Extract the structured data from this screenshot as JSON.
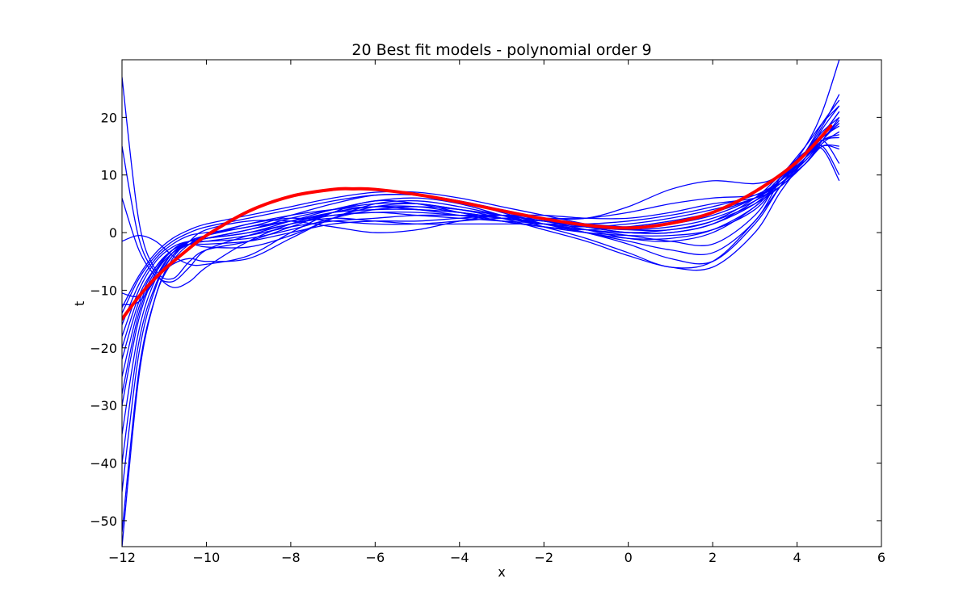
{
  "chart_data": {
    "type": "line",
    "title": "20 Best fit models - polynomial order 9",
    "xlabel": "x",
    "ylabel": "t",
    "xlim": [
      -12,
      6
    ],
    "ylim": [
      -54.5,
      30
    ],
    "xticks": [
      -12,
      -10,
      -8,
      -6,
      -4,
      -2,
      0,
      2,
      4,
      6
    ],
    "yticks": [
      -50,
      -40,
      -30,
      -20,
      -10,
      0,
      10,
      20
    ],
    "xtick_labels": [
      "−12",
      "−10",
      "−8",
      "−6",
      "−4",
      "−2",
      "0",
      "2",
      "4",
      "6"
    ],
    "ytick_labels": [
      "−50",
      "−40",
      "−30",
      "−20",
      "−10",
      "0",
      "10",
      "20"
    ],
    "grid": false,
    "colors": {
      "models": "#0000ff",
      "truth": "#ff0000"
    },
    "true_function": {
      "x": [
        -12,
        -11.5,
        -11,
        -10.5,
        -10,
        -9,
        -8,
        -7,
        -6.5,
        -6,
        -5,
        -4,
        -3,
        -2,
        -1,
        0,
        1,
        2,
        3,
        4,
        4.8
      ],
      "y": [
        -15,
        -10.2,
        -6.4,
        -3.3,
        -0.5,
        3.7,
        6.3,
        7.5,
        7.6,
        7.5,
        6.6,
        5.3,
        3.8,
        2.4,
        1.3,
        0.8,
        1.6,
        3.5,
        7.1,
        12.3,
        18.5
      ]
    },
    "models": [
      {
        "x": [
          -12,
          -11.6,
          -11.2,
          -10.8,
          -10.4,
          -10,
          -9,
          -8,
          -7,
          -6,
          -5,
          -4,
          -3,
          -2,
          -1,
          0,
          1,
          2,
          3,
          3.6,
          4.2,
          4.6,
          5
        ],
        "y": [
          27,
          2,
          -6.5,
          -8,
          -5,
          -3,
          -1.5,
          1,
          3.5,
          4.5,
          4,
          3.5,
          2.5,
          1.5,
          1,
          1.5,
          2.5,
          4,
          6,
          9,
          13,
          16,
          16.5
        ]
      },
      {
        "x": [
          -12,
          -11.6,
          -11.2,
          -10.8,
          -10.4,
          -10,
          -9,
          -8,
          -7,
          -6,
          -5,
          -4,
          -3,
          -2,
          -1,
          0,
          1,
          2,
          3,
          3.6,
          4.2,
          4.6,
          5
        ],
        "y": [
          15,
          -1,
          -7,
          -9.5,
          -8.5,
          -6,
          -1.5,
          1.5,
          3.5,
          4.5,
          4.5,
          3.5,
          2.5,
          2,
          1.5,
          1,
          1.5,
          3,
          6,
          9,
          12.5,
          16,
          17
        ]
      },
      {
        "x": [
          -12,
          -11.6,
          -11.2,
          -10.8,
          -10.4,
          -10,
          -9,
          -8,
          -7,
          -6,
          -5,
          -4,
          -3,
          -2,
          -1,
          0,
          1,
          2,
          3,
          3.6,
          4.2,
          4.6,
          5
        ],
        "y": [
          6,
          -3,
          -7.5,
          -8.5,
          -6,
          -3,
          -0.5,
          1.5,
          2.5,
          2,
          1.5,
          1.5,
          1.5,
          1.5,
          1.5,
          2,
          3,
          4.5,
          6.5,
          9,
          13,
          16.5,
          18.5
        ]
      },
      {
        "x": [
          -12,
          -11.6,
          -11.2,
          -10.8,
          -10.4,
          -10,
          -9,
          -8,
          -7,
          -6,
          -5,
          -4,
          -3,
          -2,
          -1,
          0,
          1,
          2,
          3,
          3.6,
          4.2,
          4.6,
          5
        ],
        "y": [
          -1.5,
          -0.5,
          -1.5,
          -4,
          -5.5,
          -5.5,
          -4,
          0,
          3.5,
          5.5,
          5,
          3.5,
          2,
          1,
          0.5,
          1,
          2,
          3.5,
          6,
          8.5,
          12,
          16,
          19
        ]
      },
      {
        "x": [
          -12,
          -11.6,
          -11.2,
          -10.8,
          -10.4,
          -10,
          -9,
          -8,
          -7,
          -6,
          -5,
          -4,
          -3,
          -2,
          -1,
          0,
          1,
          2,
          3,
          3.6,
          4.2,
          4.6,
          5
        ],
        "y": [
          -10.5,
          -11,
          -8,
          -5.5,
          -4.5,
          -5,
          -4.5,
          -1,
          2.5,
          4.5,
          5,
          4,
          3,
          2,
          1,
          0.5,
          1,
          2.5,
          5.5,
          8.5,
          12.5,
          16,
          19.5
        ]
      },
      {
        "x": [
          -12,
          -11.6,
          -11.2,
          -10.8,
          -10.4,
          -10,
          -9,
          -8,
          -7,
          -6,
          -5,
          -4,
          -3,
          -2,
          -1,
          0,
          1,
          2,
          3,
          3.6,
          4.2,
          4.6,
          5
        ],
        "y": [
          -12.5,
          -12,
          -8,
          -3.5,
          -2,
          -2.5,
          -2.5,
          -0.5,
          2.5,
          5,
          5.5,
          4.5,
          3,
          1.5,
          0.5,
          0,
          0.5,
          2,
          5,
          8,
          12,
          15.5,
          17.5
        ]
      },
      {
        "x": [
          -12,
          -11.6,
          -11.2,
          -10.8,
          -10.4,
          -10,
          -9,
          -8,
          -7,
          -6,
          -5,
          -4,
          -3,
          -2,
          -1,
          0,
          1,
          2,
          3,
          3.6,
          4.2,
          4.6,
          5
        ],
        "y": [
          -22,
          -12,
          -6,
          -3,
          -1.5,
          -1,
          0,
          2,
          4,
          5.5,
          6,
          5,
          3,
          1,
          -1,
          -3.5,
          -6,
          -5,
          2,
          8,
          13,
          17,
          21
        ]
      },
      {
        "x": [
          -12,
          -11.6,
          -11.2,
          -10.8,
          -10.4,
          -10,
          -9,
          -8,
          -7,
          -6,
          -5,
          -4,
          -3,
          -2,
          -1,
          0,
          1,
          2,
          3,
          3.6,
          4.2,
          4.6,
          5
        ],
        "y": [
          -25,
          -13,
          -6.5,
          -3,
          -1.5,
          -1,
          0.5,
          2.5,
          4,
          5,
          5,
          4,
          2.5,
          0.5,
          -1.5,
          -4,
          -6,
          -6,
          0,
          7,
          13,
          18,
          22
        ]
      },
      {
        "x": [
          -12,
          -11.6,
          -11.2,
          -10.8,
          -10.4,
          -10,
          -9,
          -8,
          -7,
          -6,
          -5,
          -4,
          -3,
          -2,
          -1,
          0,
          1,
          2,
          3,
          3.6,
          4.2,
          4.6,
          5
        ],
        "y": [
          -30,
          -15,
          -7,
          -3,
          -1.5,
          -1,
          0,
          1.5,
          3,
          3.5,
          3,
          2.5,
          2,
          1.5,
          0,
          -2,
          -4.5,
          -5,
          1.5,
          8,
          14,
          19,
          23
        ]
      },
      {
        "x": [
          -12,
          -11.6,
          -11.2,
          -10.8,
          -10.4,
          -10,
          -9,
          -8,
          -7,
          -6,
          -5,
          -4,
          -3,
          -2,
          -1,
          0,
          1,
          2,
          3,
          3.6,
          4.2,
          4.6,
          5
        ],
        "y": [
          -35,
          -17,
          -8,
          -3.5,
          -1.5,
          -0.5,
          1,
          2,
          3.5,
          4,
          4,
          3.5,
          2.5,
          1.5,
          0,
          -1.5,
          -3,
          -3.5,
          2,
          9,
          14,
          18.5,
          24
        ]
      },
      {
        "x": [
          -12,
          -11.6,
          -11.2,
          -10.8,
          -10.4,
          -10,
          -9,
          -8,
          -7,
          -6,
          -5,
          -4,
          -3,
          -2,
          -1,
          0,
          1,
          2,
          3,
          3.6,
          4.2,
          4.6,
          5
        ],
        "y": [
          -40,
          -19,
          -9,
          -4,
          -2,
          -1,
          0.5,
          2,
          3,
          3.5,
          3.5,
          3,
          2.5,
          1.5,
          0.5,
          -0.5,
          -1.5,
          -2,
          3,
          9.5,
          15,
          19,
          22
        ]
      },
      {
        "x": [
          -12,
          -11.6,
          -11.2,
          -10.8,
          -10.4,
          -10,
          -9,
          -8,
          -7,
          -6,
          -5,
          -4,
          -3,
          -2,
          -1,
          0,
          1,
          2,
          3,
          3.6,
          4.2,
          4.6,
          5
        ],
        "y": [
          -45,
          -21,
          -9.5,
          -4,
          -1.5,
          -0.5,
          1.5,
          3,
          4,
          4.5,
          4,
          3,
          2,
          1,
          0,
          -0.5,
          -0.5,
          0.5,
          4,
          9,
          14,
          17.5,
          20
        ]
      },
      {
        "x": [
          -12,
          -11.6,
          -11.2,
          -10.8,
          -10.4,
          -10,
          -9,
          -8,
          -7,
          -6,
          -5,
          -4,
          -3,
          -2,
          -1,
          0,
          1,
          2,
          3,
          3.6,
          4.2,
          4.6,
          5
        ],
        "y": [
          -52,
          -24,
          -11,
          -5,
          -2,
          -0.5,
          1.5,
          2.5,
          2,
          1.5,
          1.5,
          2,
          2.5,
          2.5,
          2.5,
          3.5,
          5,
          6,
          6.5,
          8.5,
          12,
          15,
          15
        ]
      },
      {
        "x": [
          -12,
          -11.6,
          -11.2,
          -10.8,
          -10.4,
          -10,
          -9,
          -8,
          -7,
          -6,
          -5,
          -4,
          -3,
          -2,
          -1,
          0,
          1,
          2,
          3,
          3.6,
          4.2,
          4.6,
          5
        ],
        "y": [
          -54.5,
          -25,
          -11,
          -4.5,
          -1.5,
          0.5,
          2,
          2,
          1,
          0,
          0.5,
          2,
          3,
          2.5,
          2.5,
          4.5,
          7.5,
          9,
          8.5,
          10,
          14,
          14.5,
          9
        ]
      },
      {
        "x": [
          -12,
          -11.6,
          -11.2,
          -10.8,
          -10.4,
          -10,
          -9,
          -8,
          -7,
          -6,
          -5,
          -4,
          -3,
          -2,
          -1,
          0,
          1,
          2,
          3,
          3.6,
          4.2,
          4.6,
          5
        ],
        "y": [
          -20,
          -11,
          -6,
          -3,
          -2,
          -2,
          -1.5,
          0,
          1.5,
          2,
          2,
          2.5,
          3,
          3,
          2.5,
          2.5,
          3.5,
          5,
          6,
          8,
          12,
          15,
          14.5
        ]
      },
      {
        "x": [
          -12,
          -11.6,
          -11.2,
          -10.8,
          -10.4,
          -10,
          -9,
          -8,
          -7,
          -6,
          -5,
          -4,
          -3,
          -2,
          -1,
          0,
          1,
          2,
          3,
          3.6,
          4.2,
          4.6,
          5
        ],
        "y": [
          -18,
          -10,
          -5,
          -2.5,
          -1.5,
          -1.5,
          -1,
          0.5,
          2.5,
          4,
          4.5,
          4,
          3,
          2,
          1,
          0,
          0,
          1.5,
          5,
          9,
          13,
          16,
          20
        ]
      },
      {
        "x": [
          -12,
          -11.6,
          -11.2,
          -10.8,
          -10.4,
          -10,
          -9,
          -8,
          -7,
          -6,
          -5,
          -4,
          -3,
          -2,
          -1,
          0,
          1,
          2,
          3,
          3.6,
          4.2,
          4.6,
          5
        ],
        "y": [
          -16,
          -9,
          -4.5,
          -2,
          -0.5,
          0,
          1,
          3,
          5,
          6.5,
          6.5,
          5.5,
          3.5,
          1.5,
          0,
          -1,
          -1,
          0.5,
          4.5,
          9,
          13.5,
          17,
          21
        ]
      },
      {
        "x": [
          -12,
          -11.6,
          -11.2,
          -10.8,
          -10.4,
          -10,
          -9,
          -8,
          -7,
          -6,
          -5,
          -4,
          -3,
          -2,
          -1,
          0,
          1,
          2,
          3,
          3.6,
          4.2,
          4.6,
          5
        ],
        "y": [
          -14,
          -8,
          -4,
          -1.5,
          0,
          1,
          2.5,
          4,
          5.5,
          6.5,
          6.5,
          5.5,
          4,
          2.5,
          1,
          0,
          0,
          1.5,
          5.5,
          9.5,
          13.5,
          16,
          12
        ]
      },
      {
        "x": [
          -12,
          -11.6,
          -11.2,
          -10.8,
          -10.4,
          -10,
          -9,
          -8,
          -7,
          -6,
          -5,
          -4,
          -3,
          -2,
          -1,
          0,
          1,
          2,
          3,
          3.6,
          4.2,
          4.6,
          5
        ],
        "y": [
          -13,
          -7.5,
          -3.5,
          -1,
          0.5,
          1.5,
          3,
          4.5,
          6,
          7,
          7,
          6,
          4.5,
          3,
          1.5,
          0.5,
          0.5,
          2,
          6,
          10,
          14,
          15,
          10
        ]
      },
      {
        "x": [
          -12,
          -11.6,
          -11.2,
          -10.8,
          -10.4,
          -10,
          -9,
          -8,
          -7,
          -6,
          -5,
          -4,
          -3,
          -2,
          -1,
          0,
          1,
          2,
          3,
          3.6,
          4.2,
          4.6,
          5
        ],
        "y": [
          -28,
          -14,
          -7,
          -3.5,
          -2,
          -1.5,
          -0.5,
          1,
          2,
          2.5,
          3,
          3,
          3,
          2,
          0.5,
          -1,
          -1.5,
          0,
          4.5,
          9,
          15,
          21,
          30
        ]
      }
    ]
  }
}
